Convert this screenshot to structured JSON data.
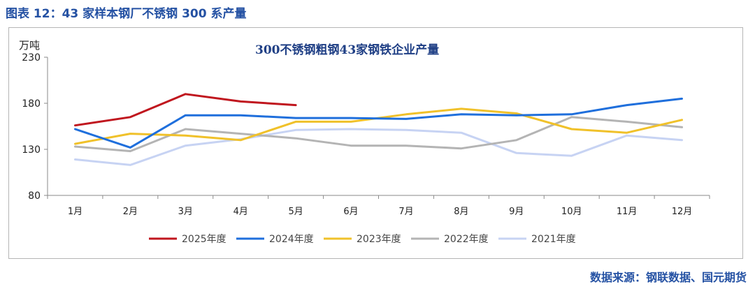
{
  "figure_title": "图表 12：43 家样本钢厂不锈钢 300 系产量",
  "source": "数据来源：钢联数据、国元期货",
  "colors": {
    "title_blue": "#2451a3",
    "axis": "#8a8a8a"
  },
  "chart_data": {
    "type": "line",
    "title": "300不锈钢粗钢43家钢铁企业产量",
    "unit": "万吨",
    "categories": [
      "1月",
      "2月",
      "3月",
      "4月",
      "5月",
      "6月",
      "7月",
      "8月",
      "9月",
      "10月",
      "11月",
      "12月"
    ],
    "ylim": [
      80,
      230
    ],
    "yticks": [
      80,
      130,
      180,
      230
    ],
    "grid": false,
    "legend_position": "bottom",
    "series": [
      {
        "name": "2025年度",
        "color": "#c0161e",
        "values": [
          156,
          165,
          190,
          182,
          178,
          null,
          null,
          null,
          null,
          null,
          null,
          null
        ]
      },
      {
        "name": "2024年度",
        "color": "#1f6fdc",
        "values": [
          152,
          132,
          167,
          167,
          164,
          164,
          163,
          168,
          167,
          168,
          178,
          185
        ]
      },
      {
        "name": "2023年度",
        "color": "#f0c12a",
        "values": [
          136,
          147,
          145,
          140,
          160,
          160,
          168,
          174,
          169,
          152,
          148,
          162
        ]
      },
      {
        "name": "2022年度",
        "color": "#b4b4b4",
        "values": [
          133,
          128,
          152,
          147,
          142,
          134,
          134,
          131,
          140,
          165,
          160,
          154
        ]
      },
      {
        "name": "2021年度",
        "color": "#c7d3f3",
        "values": [
          119,
          113,
          134,
          141,
          151,
          152,
          151,
          148,
          126,
          123,
          145,
          140
        ]
      }
    ]
  }
}
